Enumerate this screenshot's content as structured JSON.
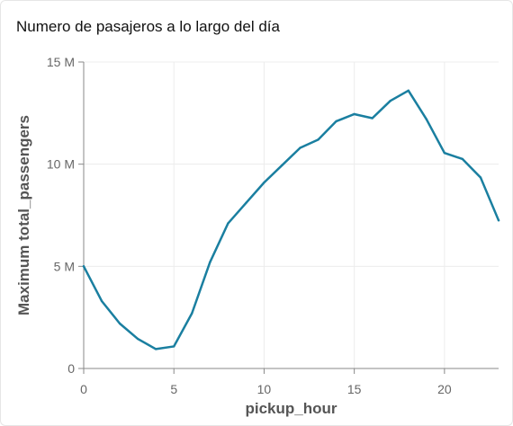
{
  "chart_data": {
    "type": "line",
    "title": "Numero de pasajeros a lo largo del día",
    "xlabel": "pickup_hour",
    "ylabel": "Maximum total_passengers",
    "xlim": [
      0,
      23
    ],
    "ylim": [
      0,
      15000000
    ],
    "x_ticks": [
      0,
      5,
      10,
      15,
      20
    ],
    "x_tick_labels": [
      "0",
      "5",
      "10",
      "15",
      "20"
    ],
    "y_ticks": [
      0,
      5000000,
      10000000,
      15000000
    ],
    "y_tick_labels": [
      "0",
      "5 M",
      "10 M",
      "15 M"
    ],
    "grid": true,
    "line_color": "#1a7fa0",
    "series": [
      {
        "x": [
          0,
          1,
          2,
          3,
          4,
          5,
          6,
          7,
          8,
          9,
          10,
          11,
          12,
          13,
          14,
          15,
          16,
          17,
          18,
          19,
          20,
          21,
          22,
          23
        ],
        "values": [
          5000000,
          3300000,
          2200000,
          1450000,
          950000,
          1080000,
          2700000,
          5200000,
          7100000,
          8100000,
          9100000,
          9950000,
          10800000,
          11200000,
          12100000,
          12450000,
          12250000,
          13100000,
          13600000,
          12200000,
          10550000,
          10250000,
          9350000,
          7250000
        ]
      }
    ]
  }
}
